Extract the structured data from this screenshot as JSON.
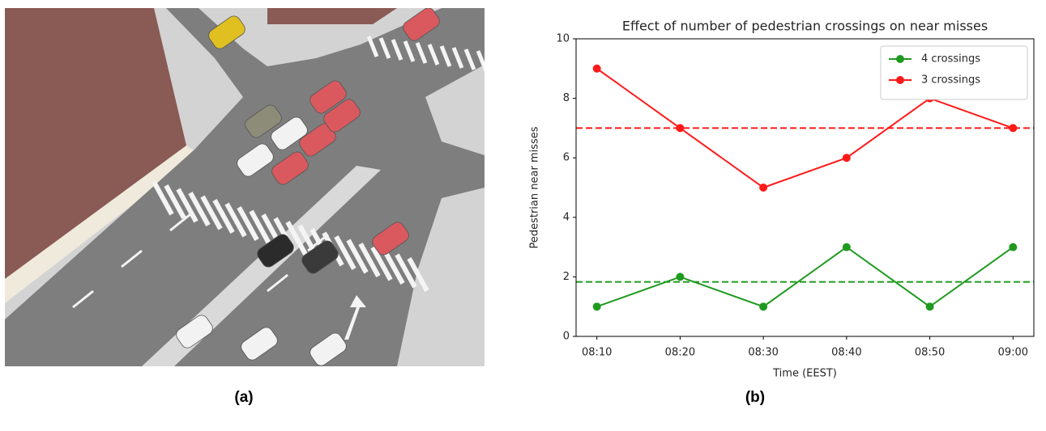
{
  "captions": [
    "(a)",
    "(b)"
  ],
  "chart_data": {
    "type": "line",
    "title": "Effect of number of pedestrian crossings on near misses",
    "x_label": "Time (EEST)",
    "y_label": "Pedestrian near misses",
    "categories": [
      "08:10",
      "08:20",
      "08:30",
      "08:40",
      "08:50",
      "09:00"
    ],
    "series": [
      {
        "name": "4 crossings",
        "color": "#1f9a1f",
        "values": [
          1,
          2,
          1,
          3,
          1,
          3
        ],
        "mean": 1.83
      },
      {
        "name": "3 crossings",
        "color": "#ff1a1a",
        "values": [
          9,
          7,
          5,
          6,
          8,
          7
        ],
        "mean": 7
      }
    ],
    "ylim": [
      0,
      10
    ],
    "yticks": [
      0,
      2,
      4,
      6,
      8,
      10
    ],
    "legend": "upper right",
    "grid": false
  }
}
